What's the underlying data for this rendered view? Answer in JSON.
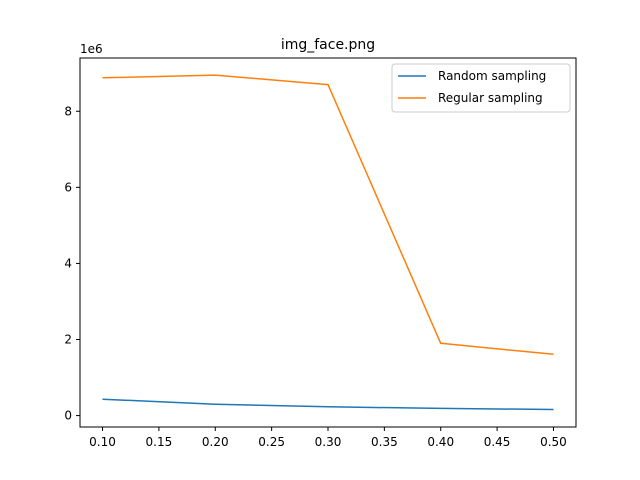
{
  "chart_data": {
    "type": "line",
    "title": "img_face.png",
    "xlabel": "",
    "ylabel": "",
    "y_offset_text": "1e6",
    "y_scale_factor": 1000000,
    "xlim": [
      0.08,
      0.52
    ],
    "ylim": [
      -300000,
      9400000
    ],
    "x_ticks": [
      0.1,
      0.15,
      0.2,
      0.25,
      0.3,
      0.35,
      0.4,
      0.45,
      0.5
    ],
    "x_tick_labels": [
      "0.10",
      "0.15",
      "0.20",
      "0.25",
      "0.30",
      "0.35",
      "0.40",
      "0.45",
      "0.50"
    ],
    "y_ticks": [
      0,
      2000000,
      4000000,
      6000000,
      8000000
    ],
    "y_tick_labels": [
      "0",
      "2",
      "4",
      "6",
      "8"
    ],
    "grid": false,
    "legend_position": "top-right",
    "x": [
      0.1,
      0.2,
      0.3,
      0.4,
      0.5
    ],
    "series": [
      {
        "name": "Random sampling",
        "color": "#1f77b4",
        "values": [
          430000,
          300000,
          230000,
          190000,
          160000
        ]
      },
      {
        "name": "Regular sampling",
        "color": "#ff7f0e",
        "values": [
          8880000,
          8950000,
          8700000,
          1900000,
          1610000
        ]
      }
    ]
  }
}
